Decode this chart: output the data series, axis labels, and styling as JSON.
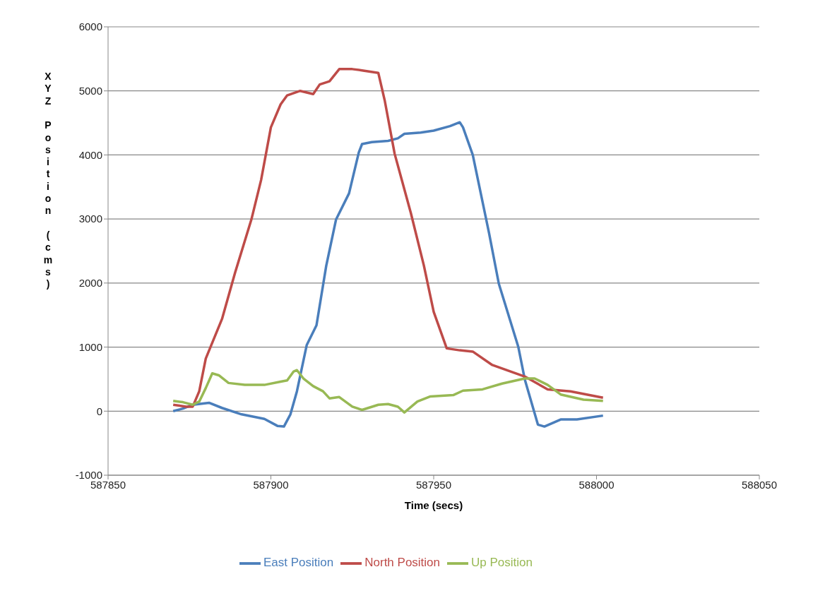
{
  "chart_data": {
    "type": "line",
    "xlabel": "Time (secs)",
    "ylabel": "XYZ Position (cms)",
    "xlim": [
      587850,
      588050
    ],
    "xticks": [
      587850,
      587900,
      587950,
      588000,
      588050
    ],
    "ylim": [
      -1000,
      6000
    ],
    "yticks": [
      -1000,
      0,
      1000,
      2000,
      3000,
      4000,
      5000,
      6000
    ],
    "grid": "y",
    "legend": "bottom",
    "marker": "none",
    "line_style": "solid",
    "series": [
      {
        "name": "East Position",
        "color": "#4a7ebb",
        "x": [
          587870,
          587873,
          587876,
          587881,
          587885,
          587891,
          587898,
          587902,
          587904,
          587906,
          587908,
          587911,
          587914,
          587917,
          587920,
          587924,
          587927,
          587928,
          587931,
          587936,
          587939,
          587941,
          587946,
          587950,
          587955,
          587958,
          587959,
          587962,
          587967,
          587970,
          587976,
          587978,
          587982,
          587984,
          587989,
          587994,
          588002
        ],
        "values": [
          0,
          40,
          100,
          130,
          50,
          -50,
          -120,
          -230,
          -240,
          -50,
          310,
          1030,
          1340,
          2270,
          2990,
          3400,
          4040,
          4170,
          4200,
          4220,
          4260,
          4330,
          4350,
          4380,
          4450,
          4510,
          4430,
          4000,
          2780,
          1990,
          1000,
          490,
          -210,
          -240,
          -130,
          -130,
          -70
        ]
      },
      {
        "name": "North Position",
        "color": "#be4b48",
        "x": [
          587870,
          587874,
          587876,
          587878,
          587880,
          587885,
          587889,
          587894,
          587897,
          587900,
          587903,
          587905,
          587909,
          587913,
          587915,
          587918,
          587921,
          587925,
          587928,
          587933,
          587935,
          587938,
          587943,
          587947,
          587950,
          587954,
          587958,
          587962,
          587968,
          587978,
          587985,
          587992,
          588002
        ],
        "values": [
          100,
          70,
          70,
          310,
          820,
          1440,
          2160,
          2990,
          3610,
          4430,
          4790,
          4930,
          5000,
          4950,
          5100,
          5150,
          5340,
          5340,
          5320,
          5280,
          4840,
          4020,
          3090,
          2270,
          1550,
          980,
          950,
          930,
          720,
          540,
          340,
          310,
          210
        ]
      },
      {
        "name": "Up Position",
        "color": "#98b954",
        "x": [
          587870,
          587873,
          587876,
          587878,
          587880,
          587882,
          587884,
          587887,
          587892,
          587898,
          587903,
          587905,
          587907,
          587908,
          587910,
          587913,
          587916,
          587918,
          587921,
          587925,
          587928,
          587933,
          587936,
          587939,
          587941,
          587945,
          587949,
          587956,
          587959,
          587965,
          587971,
          587978,
          587981,
          587985,
          587989,
          587996,
          588002
        ],
        "values": [
          160,
          140,
          100,
          150,
          360,
          590,
          560,
          440,
          410,
          410,
          460,
          480,
          620,
          640,
          510,
          390,
          310,
          200,
          220,
          70,
          20,
          100,
          110,
          70,
          -20,
          150,
          230,
          250,
          320,
          340,
          430,
          510,
          510,
          410,
          260,
          180,
          160
        ]
      }
    ]
  }
}
